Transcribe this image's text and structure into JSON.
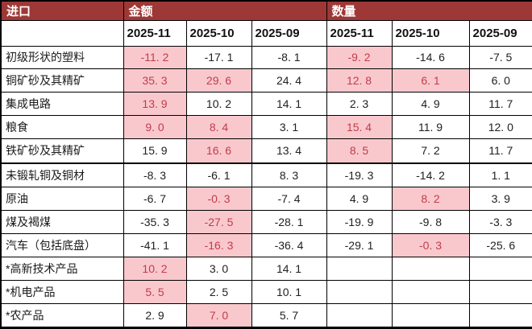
{
  "colors": {
    "header_bg": "#9d3836",
    "header_text": "#ffffff",
    "highlight_bg": "#f9c8cd",
    "highlight_text": "#c03d4b",
    "border": "#000000"
  },
  "table": {
    "corner_label": "进口",
    "groups": [
      "金额",
      "数量"
    ],
    "period_headers": [
      "2025-11",
      "2025-10",
      "2025-09",
      "2025-11",
      "2025-10",
      "2025-09"
    ],
    "thick_divider_above_row_index": 5,
    "rows": [
      {
        "label": "初级形状的塑料",
        "cells": [
          {
            "v": "-11. 2",
            "hl": true
          },
          {
            "v": "-17. 1",
            "hl": false
          },
          {
            "v": "-8. 1",
            "hl": false
          },
          {
            "v": "-9. 2",
            "hl": true
          },
          {
            "v": "-14. 6",
            "hl": false
          },
          {
            "v": "-7. 5",
            "hl": false
          }
        ]
      },
      {
        "label": "铜矿砂及其精矿",
        "cells": [
          {
            "v": "35. 3",
            "hl": true
          },
          {
            "v": "29. 6",
            "hl": true
          },
          {
            "v": "24. 4",
            "hl": false
          },
          {
            "v": "12. 8",
            "hl": true
          },
          {
            "v": "6. 1",
            "hl": true
          },
          {
            "v": "6. 0",
            "hl": false
          }
        ]
      },
      {
        "label": "集成电路",
        "cells": [
          {
            "v": "13. 9",
            "hl": true
          },
          {
            "v": "10. 2",
            "hl": false
          },
          {
            "v": "14. 1",
            "hl": false
          },
          {
            "v": "2. 3",
            "hl": false
          },
          {
            "v": "4. 9",
            "hl": false
          },
          {
            "v": "11. 7",
            "hl": false
          }
        ]
      },
      {
        "label": "粮食",
        "cells": [
          {
            "v": "9. 0",
            "hl": true
          },
          {
            "v": "8. 4",
            "hl": true
          },
          {
            "v": "3. 1",
            "hl": false
          },
          {
            "v": "15. 4",
            "hl": true
          },
          {
            "v": "11. 9",
            "hl": false
          },
          {
            "v": "12. 0",
            "hl": false
          }
        ]
      },
      {
        "label": "铁矿砂及其精矿",
        "cells": [
          {
            "v": "15. 9",
            "hl": false
          },
          {
            "v": "16. 6",
            "hl": true
          },
          {
            "v": "13. 4",
            "hl": false
          },
          {
            "v": "8. 5",
            "hl": true
          },
          {
            "v": "7. 2",
            "hl": false
          },
          {
            "v": "11. 7",
            "hl": false
          }
        ]
      },
      {
        "label": "未锻轧铜及铜材",
        "cells": [
          {
            "v": "-8. 3",
            "hl": false
          },
          {
            "v": "-6. 1",
            "hl": false
          },
          {
            "v": "8. 3",
            "hl": false
          },
          {
            "v": "-19. 3",
            "hl": false
          },
          {
            "v": "-14. 2",
            "hl": false
          },
          {
            "v": "1. 1",
            "hl": false
          }
        ]
      },
      {
        "label": "原油",
        "cells": [
          {
            "v": "-6. 7",
            "hl": false
          },
          {
            "v": "-0. 3",
            "hl": true
          },
          {
            "v": "-7. 4",
            "hl": false
          },
          {
            "v": "4. 9",
            "hl": false
          },
          {
            "v": "8. 2",
            "hl": true
          },
          {
            "v": "3. 9",
            "hl": false
          }
        ]
      },
      {
        "label": "煤及褐煤",
        "cells": [
          {
            "v": "-35. 3",
            "hl": false
          },
          {
            "v": "-27. 5",
            "hl": true
          },
          {
            "v": "-28. 1",
            "hl": false
          },
          {
            "v": "-19. 9",
            "hl": false
          },
          {
            "v": "-9. 8",
            "hl": false
          },
          {
            "v": "-3. 3",
            "hl": false
          }
        ]
      },
      {
        "label": "汽车（包括底盘）",
        "cells": [
          {
            "v": "-41. 1",
            "hl": false
          },
          {
            "v": "-16. 3",
            "hl": true
          },
          {
            "v": "-36. 4",
            "hl": false
          },
          {
            "v": "-29. 1",
            "hl": false
          },
          {
            "v": "-0. 3",
            "hl": true
          },
          {
            "v": "-25. 6",
            "hl": false
          }
        ]
      },
      {
        "label": "*高新技术产品",
        "cells": [
          {
            "v": "10. 2",
            "hl": true
          },
          {
            "v": "3. 0",
            "hl": false
          },
          {
            "v": "14. 1",
            "hl": false
          },
          {
            "v": "",
            "hl": false
          },
          {
            "v": "",
            "hl": false
          },
          {
            "v": "",
            "hl": false
          }
        ]
      },
      {
        "label": "*机电产品",
        "cells": [
          {
            "v": "5. 5",
            "hl": true
          },
          {
            "v": "2. 5",
            "hl": false
          },
          {
            "v": "10. 1",
            "hl": false
          },
          {
            "v": "",
            "hl": false
          },
          {
            "v": "",
            "hl": false
          },
          {
            "v": "",
            "hl": false
          }
        ]
      },
      {
        "label": "*农产品",
        "cells": [
          {
            "v": "2. 9",
            "hl": false
          },
          {
            "v": "7. 0",
            "hl": true
          },
          {
            "v": "5. 7",
            "hl": false
          },
          {
            "v": "",
            "hl": false
          },
          {
            "v": "",
            "hl": false
          },
          {
            "v": "",
            "hl": false
          }
        ]
      }
    ]
  },
  "chart_data": {
    "type": "table",
    "title": "进口",
    "column_groups": [
      "金额",
      "数量"
    ],
    "columns": [
      "金额 2025-11",
      "金额 2025-10",
      "金额 2025-09",
      "数量 2025-11",
      "数量 2025-10",
      "数量 2025-09"
    ],
    "rows": [
      {
        "label": "初级形状的塑料",
        "values": [
          -11.2,
          -17.1,
          -8.1,
          -9.2,
          -14.6,
          -7.5
        ]
      },
      {
        "label": "铜矿砂及其精矿",
        "values": [
          35.3,
          29.6,
          24.4,
          12.8,
          6.1,
          6.0
        ]
      },
      {
        "label": "集成电路",
        "values": [
          13.9,
          10.2,
          14.1,
          2.3,
          4.9,
          11.7
        ]
      },
      {
        "label": "粮食",
        "values": [
          9.0,
          8.4,
          3.1,
          15.4,
          11.9,
          12.0
        ]
      },
      {
        "label": "铁矿砂及其精矿",
        "values": [
          15.9,
          16.6,
          13.4,
          8.5,
          7.2,
          11.7
        ]
      },
      {
        "label": "未锻轧铜及铜材",
        "values": [
          -8.3,
          -6.1,
          8.3,
          -19.3,
          -14.2,
          1.1
        ]
      },
      {
        "label": "原油",
        "values": [
          -6.7,
          -0.3,
          -7.4,
          4.9,
          8.2,
          3.9
        ]
      },
      {
        "label": "煤及褐煤",
        "values": [
          -35.3,
          -27.5,
          -28.1,
          -19.9,
          -9.8,
          -3.3
        ]
      },
      {
        "label": "汽车（包括底盘）",
        "values": [
          -41.1,
          -16.3,
          -36.4,
          -29.1,
          -0.3,
          -25.6
        ]
      },
      {
        "label": "*高新技术产品",
        "values": [
          10.2,
          3.0,
          14.1,
          null,
          null,
          null
        ]
      },
      {
        "label": "*机电产品",
        "values": [
          5.5,
          2.5,
          10.1,
          null,
          null,
          null
        ]
      },
      {
        "label": "*农产品",
        "values": [
          2.9,
          7.0,
          5.7,
          null,
          null,
          null
        ]
      }
    ],
    "highlight_meaning_color": "#f9c8cd"
  }
}
